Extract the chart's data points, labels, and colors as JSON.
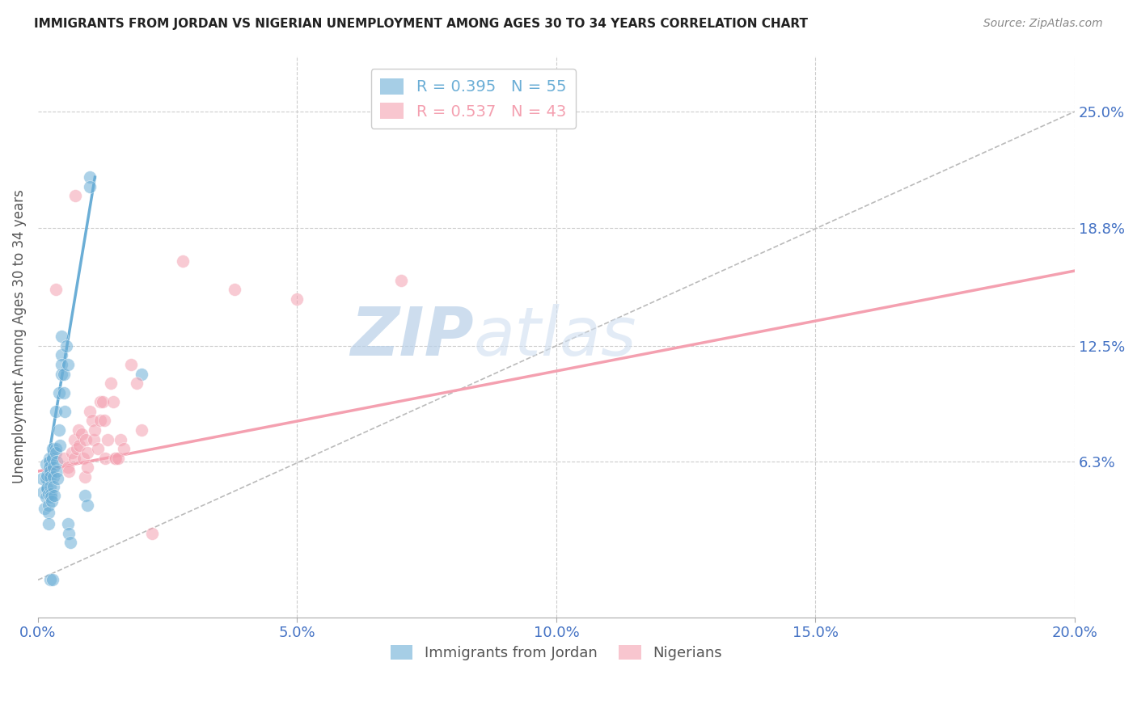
{
  "title": "IMMIGRANTS FROM JORDAN VS NIGERIAN UNEMPLOYMENT AMONG AGES 30 TO 34 YEARS CORRELATION CHART",
  "source": "Source: ZipAtlas.com",
  "ylabel": "Unemployment Among Ages 30 to 34 years",
  "xlim": [
    0.0,
    0.2
  ],
  "ylim": [
    -0.02,
    0.28
  ],
  "right_ytick_labels": [
    "6.3%",
    "12.5%",
    "18.8%",
    "25.0%"
  ],
  "right_ytick_values": [
    0.063,
    0.125,
    0.188,
    0.25
  ],
  "xtick_labels": [
    "0.0%",
    "5.0%",
    "10.0%",
    "15.0%",
    "20.0%"
  ],
  "xtick_values": [
    0.0,
    0.05,
    0.1,
    0.15,
    0.2
  ],
  "watermark_zip": "ZIP",
  "watermark_atlas": "atlas",
  "jordan_color": "#6baed6",
  "nigerian_color": "#f4a0b0",
  "jordan_R": 0.395,
  "jordan_N": 55,
  "nigerian_R": 0.537,
  "nigerian_N": 43,
  "jordan_points": [
    [
      0.0008,
      0.054
    ],
    [
      0.001,
      0.047
    ],
    [
      0.0012,
      0.038
    ],
    [
      0.0015,
      0.062
    ],
    [
      0.0015,
      0.054
    ],
    [
      0.0015,
      0.044
    ],
    [
      0.0018,
      0.056
    ],
    [
      0.0018,
      0.049
    ],
    [
      0.002,
      0.046
    ],
    [
      0.002,
      0.04
    ],
    [
      0.002,
      0.036
    ],
    [
      0.002,
      0.03
    ],
    [
      0.0022,
      0.065
    ],
    [
      0.0022,
      0.063
    ],
    [
      0.0022,
      0.06
    ],
    [
      0.0024,
      0.058
    ],
    [
      0.0024,
      0.055
    ],
    [
      0.0024,
      0.05
    ],
    [
      0.0025,
      0.046
    ],
    [
      0.0025,
      0.044
    ],
    [
      0.0026,
      0.042
    ],
    [
      0.0028,
      0.07
    ],
    [
      0.0028,
      0.065
    ],
    [
      0.003,
      0.06
    ],
    [
      0.003,
      0.055
    ],
    [
      0.003,
      0.05
    ],
    [
      0.0032,
      0.045
    ],
    [
      0.0034,
      0.09
    ],
    [
      0.0034,
      0.07
    ],
    [
      0.0035,
      0.068
    ],
    [
      0.0036,
      0.063
    ],
    [
      0.0036,
      0.058
    ],
    [
      0.0038,
      0.054
    ],
    [
      0.004,
      0.1
    ],
    [
      0.004,
      0.08
    ],
    [
      0.0042,
      0.072
    ],
    [
      0.0045,
      0.13
    ],
    [
      0.0045,
      0.12
    ],
    [
      0.0046,
      0.115
    ],
    [
      0.0046,
      0.11
    ],
    [
      0.005,
      0.11
    ],
    [
      0.005,
      0.1
    ],
    [
      0.0052,
      0.09
    ],
    [
      0.0055,
      0.125
    ],
    [
      0.0058,
      0.115
    ],
    [
      0.0058,
      0.03
    ],
    [
      0.006,
      0.025
    ],
    [
      0.0062,
      0.02
    ],
    [
      0.009,
      0.045
    ],
    [
      0.0095,
      0.04
    ],
    [
      0.01,
      0.215
    ],
    [
      0.01,
      0.21
    ],
    [
      0.02,
      0.11
    ],
    [
      0.0024,
      0.0
    ],
    [
      0.0028,
      0.0
    ]
  ],
  "nigerian_points": [
    [
      0.005,
      0.065
    ],
    [
      0.0058,
      0.06
    ],
    [
      0.006,
      0.058
    ],
    [
      0.0065,
      0.068
    ],
    [
      0.007,
      0.075
    ],
    [
      0.007,
      0.065
    ],
    [
      0.0075,
      0.07
    ],
    [
      0.0078,
      0.08
    ],
    [
      0.008,
      0.072
    ],
    [
      0.0085,
      0.078
    ],
    [
      0.0088,
      0.065
    ],
    [
      0.009,
      0.055
    ],
    [
      0.0092,
      0.075
    ],
    [
      0.0095,
      0.068
    ],
    [
      0.0095,
      0.06
    ],
    [
      0.01,
      0.09
    ],
    [
      0.0105,
      0.085
    ],
    [
      0.0108,
      0.075
    ],
    [
      0.011,
      0.08
    ],
    [
      0.0115,
      0.07
    ],
    [
      0.012,
      0.095
    ],
    [
      0.012,
      0.085
    ],
    [
      0.0125,
      0.095
    ],
    [
      0.0128,
      0.085
    ],
    [
      0.013,
      0.065
    ],
    [
      0.0135,
      0.075
    ],
    [
      0.014,
      0.105
    ],
    [
      0.0145,
      0.095
    ],
    [
      0.0148,
      0.065
    ],
    [
      0.015,
      0.065
    ],
    [
      0.0155,
      0.065
    ],
    [
      0.016,
      0.075
    ],
    [
      0.0165,
      0.07
    ],
    [
      0.018,
      0.115
    ],
    [
      0.019,
      0.105
    ],
    [
      0.02,
      0.08
    ],
    [
      0.022,
      0.025
    ],
    [
      0.028,
      0.17
    ],
    [
      0.038,
      0.155
    ],
    [
      0.05,
      0.15
    ],
    [
      0.0035,
      0.155
    ],
    [
      0.0072,
      0.205
    ],
    [
      0.07,
      0.16
    ]
  ],
  "jordan_line_x": [
    0.001,
    0.011
  ],
  "jordan_line_y": [
    0.048,
    0.215
  ],
  "nigerian_line_x": [
    0.0,
    0.2
  ],
  "nigerian_line_y": [
    0.058,
    0.165
  ],
  "diagonal_line_x": [
    0.0,
    0.2
  ],
  "diagonal_line_y": [
    0.0,
    0.25
  ],
  "background_color": "#ffffff",
  "grid_color": "#cccccc",
  "title_color": "#222222",
  "right_axis_color": "#4472c4",
  "xtick_color": "#4472c4"
}
